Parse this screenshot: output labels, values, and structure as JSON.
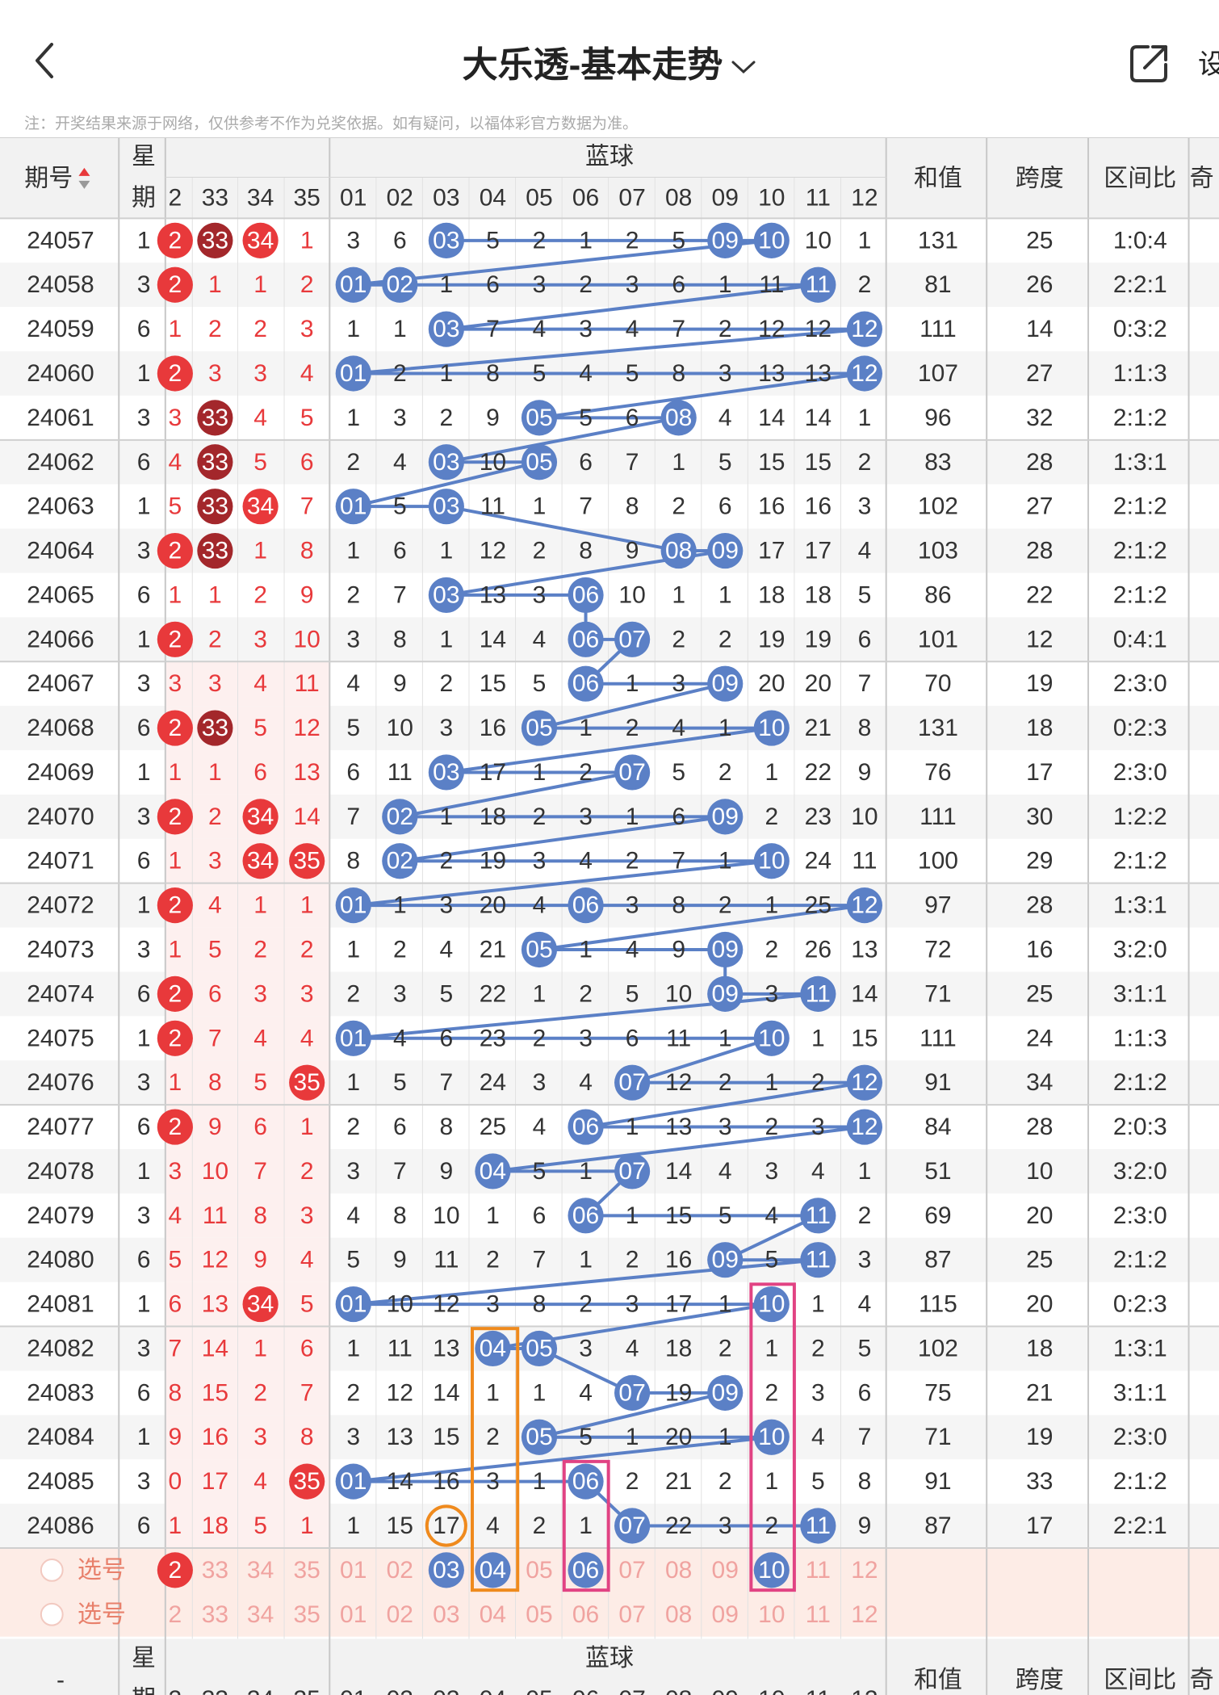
{
  "header": {
    "title": "大乐透-基本走势",
    "settings_label": "设",
    "notice": "注：开奖结果来源于网络，仅供参考不作为兑奖依据。如有疑问，以福体彩官方数据为准。"
  },
  "table": {
    "col_issue": "期号",
    "col_week_top": "星",
    "col_week_bottom": "期",
    "blue_title": "蓝球",
    "col_sum": "和值",
    "col_span": "跨度",
    "col_ratio": "区间比",
    "col_odd": "奇",
    "red_headers": [
      "2",
      "33",
      "34",
      "35"
    ],
    "blue_headers": [
      "01",
      "02",
      "03",
      "04",
      "05",
      "06",
      "07",
      "08",
      "09",
      "10",
      "11",
      "12"
    ],
    "select_label": "选号",
    "footer_issue": "-",
    "rows": [
      {
        "issue": "24057",
        "week": "1",
        "red": [
          "2",
          "33",
          "34",
          "1"
        ],
        "blue": [
          "3",
          "6",
          "03",
          "5",
          "2",
          "1",
          "2",
          "5",
          "09",
          "10",
          "10",
          "1"
        ],
        "sum": "131",
        "span": "25",
        "ratio": "1:0:4"
      },
      {
        "issue": "24058",
        "week": "3",
        "red": [
          "2",
          "1",
          "1",
          "2"
        ],
        "blue": [
          "01",
          "02",
          "1",
          "6",
          "3",
          "2",
          "3",
          "6",
          "1",
          "11",
          "11",
          "2"
        ],
        "sum": "81",
        "span": "26",
        "ratio": "2:2:1"
      },
      {
        "issue": "24059",
        "week": "6",
        "red": [
          "1",
          "2",
          "2",
          "3"
        ],
        "blue": [
          "1",
          "1",
          "03",
          "7",
          "4",
          "3",
          "4",
          "7",
          "2",
          "12",
          "12",
          "12"
        ],
        "sum": "111",
        "span": "14",
        "ratio": "0:3:2"
      },
      {
        "issue": "24060",
        "week": "1",
        "red": [
          "2",
          "3",
          "3",
          "4"
        ],
        "blue": [
          "01",
          "2",
          "1",
          "8",
          "5",
          "4",
          "5",
          "8",
          "3",
          "13",
          "13",
          "12"
        ],
        "sum": "107",
        "span": "27",
        "ratio": "1:1:3"
      },
      {
        "issue": "24061",
        "week": "3",
        "red": [
          "3",
          "33",
          "4",
          "5"
        ],
        "blue": [
          "1",
          "3",
          "2",
          "9",
          "05",
          "5",
          "6",
          "08",
          "4",
          "14",
          "14",
          "1"
        ],
        "sum": "96",
        "span": "32",
        "ratio": "2:1:2"
      },
      {
        "issue": "24062",
        "week": "6",
        "red": [
          "4",
          "33",
          "5",
          "6"
        ],
        "blue": [
          "2",
          "4",
          "03",
          "10",
          "05",
          "6",
          "7",
          "1",
          "5",
          "15",
          "15",
          "2"
        ],
        "sum": "83",
        "span": "28",
        "ratio": "1:3:1"
      },
      {
        "issue": "24063",
        "week": "1",
        "red": [
          "5",
          "33",
          "34",
          "7"
        ],
        "blue": [
          "01",
          "5",
          "03",
          "11",
          "1",
          "7",
          "8",
          "2",
          "6",
          "16",
          "16",
          "3"
        ],
        "sum": "102",
        "span": "27",
        "ratio": "2:1:2"
      },
      {
        "issue": "24064",
        "week": "3",
        "red": [
          "2",
          "33",
          "1",
          "8"
        ],
        "blue": [
          "1",
          "6",
          "1",
          "12",
          "2",
          "8",
          "9",
          "08",
          "09",
          "17",
          "17",
          "4"
        ],
        "sum": "103",
        "span": "28",
        "ratio": "2:1:2"
      },
      {
        "issue": "24065",
        "week": "6",
        "red": [
          "1",
          "1",
          "2",
          "9"
        ],
        "blue": [
          "2",
          "7",
          "03",
          "13",
          "3",
          "06",
          "10",
          "1",
          "1",
          "18",
          "18",
          "5"
        ],
        "sum": "86",
        "span": "22",
        "ratio": "2:1:2"
      },
      {
        "issue": "24066",
        "week": "1",
        "red": [
          "2",
          "2",
          "3",
          "10"
        ],
        "blue": [
          "3",
          "8",
          "1",
          "14",
          "4",
          "06",
          "07",
          "2",
          "2",
          "19",
          "19",
          "6"
        ],
        "sum": "101",
        "span": "12",
        "ratio": "0:4:1"
      },
      {
        "issue": "24067",
        "week": "3",
        "red": [
          "3",
          "3",
          "4",
          "11"
        ],
        "blue": [
          "4",
          "9",
          "2",
          "15",
          "5",
          "06",
          "1",
          "3",
          "09",
          "20",
          "20",
          "7"
        ],
        "sum": "70",
        "span": "19",
        "ratio": "2:3:0"
      },
      {
        "issue": "24068",
        "week": "6",
        "red": [
          "2",
          "33",
          "5",
          "12"
        ],
        "blue": [
          "5",
          "10",
          "3",
          "16",
          "05",
          "1",
          "2",
          "4",
          "1",
          "10",
          "21",
          "8"
        ],
        "sum": "131",
        "span": "18",
        "ratio": "0:2:3"
      },
      {
        "issue": "24069",
        "week": "1",
        "red": [
          "1",
          "1",
          "6",
          "13"
        ],
        "blue": [
          "6",
          "11",
          "03",
          "17",
          "1",
          "2",
          "07",
          "5",
          "2",
          "1",
          "22",
          "9"
        ],
        "sum": "76",
        "span": "17",
        "ratio": "2:3:0"
      },
      {
        "issue": "24070",
        "week": "3",
        "red": [
          "2",
          "2",
          "34",
          "14"
        ],
        "blue": [
          "7",
          "02",
          "1",
          "18",
          "2",
          "3",
          "1",
          "6",
          "09",
          "2",
          "23",
          "10"
        ],
        "sum": "111",
        "span": "30",
        "ratio": "1:2:2"
      },
      {
        "issue": "24071",
        "week": "6",
        "red": [
          "1",
          "3",
          "34",
          "35"
        ],
        "blue": [
          "8",
          "02",
          "2",
          "19",
          "3",
          "4",
          "2",
          "7",
          "1",
          "10",
          "24",
          "11"
        ],
        "sum": "100",
        "span": "29",
        "ratio": "2:1:2"
      },
      {
        "issue": "24072",
        "week": "1",
        "red": [
          "2",
          "4",
          "1",
          "1"
        ],
        "blue": [
          "01",
          "1",
          "3",
          "20",
          "4",
          "06",
          "3",
          "8",
          "2",
          "1",
          "25",
          "12"
        ],
        "sum": "97",
        "span": "28",
        "ratio": "1:3:1"
      },
      {
        "issue": "24073",
        "week": "3",
        "red": [
          "1",
          "5",
          "2",
          "2"
        ],
        "blue": [
          "1",
          "2",
          "4",
          "21",
          "05",
          "1",
          "4",
          "9",
          "09",
          "2",
          "26",
          "13"
        ],
        "sum": "72",
        "span": "16",
        "ratio": "3:2:0"
      },
      {
        "issue": "24074",
        "week": "6",
        "red": [
          "2",
          "6",
          "3",
          "3"
        ],
        "blue": [
          "2",
          "3",
          "5",
          "22",
          "1",
          "2",
          "5",
          "10",
          "09",
          "3",
          "11",
          "14"
        ],
        "sum": "71",
        "span": "25",
        "ratio": "3:1:1"
      },
      {
        "issue": "24075",
        "week": "1",
        "red": [
          "2",
          "7",
          "4",
          "4"
        ],
        "blue": [
          "01",
          "4",
          "6",
          "23",
          "2",
          "3",
          "6",
          "11",
          "1",
          "10",
          "1",
          "15"
        ],
        "sum": "111",
        "span": "24",
        "ratio": "1:1:3"
      },
      {
        "issue": "24076",
        "week": "3",
        "red": [
          "1",
          "8",
          "5",
          "35"
        ],
        "blue": [
          "1",
          "5",
          "7",
          "24",
          "3",
          "4",
          "07",
          "12",
          "2",
          "1",
          "2",
          "12"
        ],
        "sum": "91",
        "span": "34",
        "ratio": "2:1:2"
      },
      {
        "issue": "24077",
        "week": "6",
        "red": [
          "2",
          "9",
          "6",
          "1"
        ],
        "blue": [
          "2",
          "6",
          "8",
          "25",
          "4",
          "06",
          "1",
          "13",
          "3",
          "2",
          "3",
          "12"
        ],
        "sum": "84",
        "span": "28",
        "ratio": "2:0:3"
      },
      {
        "issue": "24078",
        "week": "1",
        "red": [
          "3",
          "10",
          "7",
          "2"
        ],
        "blue": [
          "3",
          "7",
          "9",
          "04",
          "5",
          "1",
          "07",
          "14",
          "4",
          "3",
          "4",
          "1"
        ],
        "sum": "51",
        "span": "10",
        "ratio": "3:2:0"
      },
      {
        "issue": "24079",
        "week": "3",
        "red": [
          "4",
          "11",
          "8",
          "3"
        ],
        "blue": [
          "4",
          "8",
          "10",
          "1",
          "6",
          "06",
          "1",
          "15",
          "5",
          "4",
          "11",
          "2"
        ],
        "sum": "69",
        "span": "20",
        "ratio": "2:3:0"
      },
      {
        "issue": "24080",
        "week": "6",
        "red": [
          "5",
          "12",
          "9",
          "4"
        ],
        "blue": [
          "5",
          "9",
          "11",
          "2",
          "7",
          "1",
          "2",
          "16",
          "09",
          "5",
          "11",
          "3"
        ],
        "sum": "87",
        "span": "25",
        "ratio": "2:1:2"
      },
      {
        "issue": "24081",
        "week": "1",
        "red": [
          "6",
          "13",
          "34",
          "5"
        ],
        "blue": [
          "01",
          "10",
          "12",
          "3",
          "8",
          "2",
          "3",
          "17",
          "1",
          "10",
          "1",
          "4"
        ],
        "sum": "115",
        "span": "20",
        "ratio": "0:2:3"
      },
      {
        "issue": "24082",
        "week": "3",
        "red": [
          "7",
          "14",
          "1",
          "6"
        ],
        "blue": [
          "1",
          "11",
          "13",
          "04",
          "05",
          "3",
          "4",
          "18",
          "2",
          "1",
          "2",
          "5"
        ],
        "sum": "102",
        "span": "18",
        "ratio": "1:3:1"
      },
      {
        "issue": "24083",
        "week": "6",
        "red": [
          "8",
          "15",
          "2",
          "7"
        ],
        "blue": [
          "2",
          "12",
          "14",
          "1",
          "1",
          "4",
          "07",
          "19",
          "09",
          "2",
          "3",
          "6"
        ],
        "sum": "75",
        "span": "21",
        "ratio": "3:1:1"
      },
      {
        "issue": "24084",
        "week": "1",
        "red": [
          "9",
          "16",
          "3",
          "8"
        ],
        "blue": [
          "3",
          "13",
          "15",
          "2",
          "05",
          "5",
          "1",
          "20",
          "1",
          "10",
          "4",
          "7"
        ],
        "sum": "71",
        "span": "19",
        "ratio": "2:3:0"
      },
      {
        "issue": "24085",
        "week": "3",
        "red": [
          "0",
          "17",
          "4",
          "35"
        ],
        "blue": [
          "01",
          "14",
          "16",
          "3",
          "1",
          "06",
          "2",
          "21",
          "2",
          "1",
          "5",
          "8"
        ],
        "sum": "91",
        "span": "33",
        "ratio": "2:1:2"
      },
      {
        "issue": "24086",
        "week": "6",
        "red": [
          "1",
          "18",
          "5",
          "1"
        ],
        "blue": [
          "1",
          "15",
          "17",
          "4",
          "2",
          "1",
          "07",
          "22",
          "3",
          "2",
          "11",
          "9"
        ],
        "sum": "87",
        "span": "17",
        "ratio": "2:2:1"
      }
    ],
    "select_row1_red": [
      "2",
      "33",
      "34",
      "35"
    ],
    "select_row1_blue": [
      "01",
      "02",
      "03",
      "04",
      "05",
      "06",
      "07",
      "08",
      "09",
      "10",
      "11",
      "12"
    ],
    "select_row2_red": [
      "2",
      "33",
      "34",
      "35"
    ],
    "select_row2_blue": [
      "01",
      "02",
      "03",
      "04",
      "05",
      "06",
      "07",
      "08",
      "09",
      "10",
      "11",
      "12"
    ]
  },
  "colors": {
    "blue_ball": "#5b80c6",
    "line": "#5b80c6",
    "red_ball": "#e8393b",
    "dark_red_ball": "#a3272b",
    "red_text": "#e8393b",
    "orange_box": "#ef8a1d",
    "pink_box": "#e14383",
    "select_bg": "#fdece6",
    "stripe_bg": "#f5f5f5"
  },
  "icons": {
    "back": "back-chevron-icon",
    "dropdown": "chevron-down-icon",
    "share": "share-icon",
    "sort": "sort-arrows-icon",
    "radio": "radio-circle-icon"
  }
}
